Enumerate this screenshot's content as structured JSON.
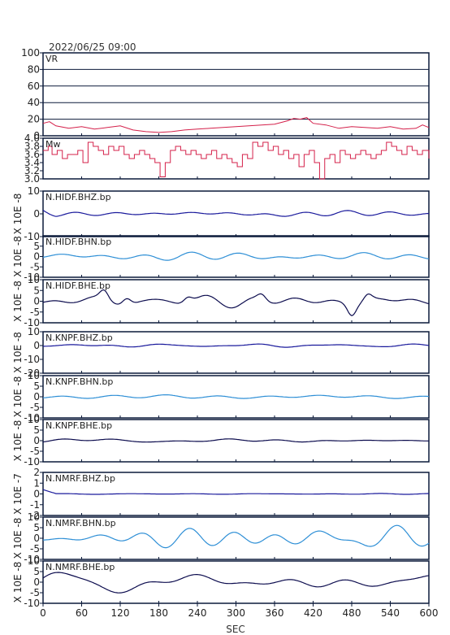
{
  "header": {
    "timestamp": "2022/06/25 09:00"
  },
  "colors": {
    "frame": "#0b1a3a",
    "vr": "#d4204a",
    "mw": "#d4204a",
    "bhz": "#1a1a9c",
    "bhn": "#2e8fd6",
    "bhe": "#0c0c4e",
    "grid": "#0b1a3a"
  },
  "chart_data": {
    "type": "line",
    "xlabel": "SEC",
    "xlim": [
      0,
      600
    ],
    "xticks": [
      0,
      60,
      120,
      180,
      240,
      300,
      360,
      420,
      480,
      540,
      600
    ],
    "panels": [
      {
        "id": "vr",
        "label": "VR",
        "color_key": "vr",
        "ylabel": "",
        "ylim": [
          0,
          100
        ],
        "yticks": [
          0,
          20,
          40,
          60,
          80,
          100
        ],
        "hgrid": true,
        "x": [
          0,
          10,
          20,
          40,
          60,
          80,
          100,
          120,
          140,
          160,
          180,
          200,
          220,
          240,
          260,
          280,
          300,
          320,
          340,
          360,
          380,
          390,
          400,
          410,
          420,
          440,
          460,
          480,
          500,
          520,
          540,
          560,
          580,
          590,
          600
        ],
        "y": [
          15,
          17,
          12,
          9,
          11,
          8,
          10,
          12,
          7,
          5,
          4,
          5,
          7,
          8,
          9,
          10,
          11,
          12,
          13,
          14,
          18,
          21,
          20,
          22,
          15,
          13,
          9,
          11,
          10,
          9,
          11,
          8,
          9,
          13,
          10
        ]
      },
      {
        "id": "mw",
        "label": "Mw",
        "color_key": "mw",
        "ylabel": "",
        "ylim": [
          3.0,
          4.0
        ],
        "yticks": [
          "3.0",
          "3.2",
          "3.4",
          "3.6",
          "3.8",
          "4.0"
        ],
        "hgrid": false,
        "x": [
          0,
          8,
          14,
          22,
          30,
          38,
          46,
          54,
          62,
          70,
          78,
          86,
          94,
          102,
          110,
          118,
          126,
          134,
          142,
          150,
          158,
          166,
          174,
          182,
          190,
          198,
          206,
          214,
          222,
          230,
          238,
          246,
          254,
          262,
          270,
          278,
          286,
          294,
          302,
          310,
          318,
          326,
          334,
          342,
          350,
          358,
          366,
          374,
          382,
          390,
          398,
          406,
          414,
          422,
          430,
          438,
          446,
          454,
          462,
          470,
          478,
          486,
          494,
          502,
          510,
          518,
          526,
          534,
          542,
          550,
          558,
          566,
          574,
          582,
          590,
          600
        ],
        "y": [
          3.7,
          3.8,
          3.6,
          3.7,
          3.5,
          3.6,
          3.6,
          3.7,
          3.4,
          3.9,
          3.8,
          3.7,
          3.6,
          3.8,
          3.7,
          3.8,
          3.6,
          3.5,
          3.6,
          3.7,
          3.6,
          3.5,
          3.4,
          3.05,
          3.4,
          3.7,
          3.8,
          3.7,
          3.6,
          3.7,
          3.6,
          3.5,
          3.6,
          3.7,
          3.5,
          3.6,
          3.5,
          3.4,
          3.3,
          3.6,
          3.5,
          3.9,
          3.8,
          3.9,
          3.7,
          3.8,
          3.6,
          3.7,
          3.5,
          3.6,
          3.3,
          3.6,
          3.7,
          3.4,
          3.0,
          3.5,
          3.6,
          3.4,
          3.7,
          3.6,
          3.5,
          3.6,
          3.7,
          3.6,
          3.5,
          3.6,
          3.7,
          3.9,
          3.8,
          3.7,
          3.6,
          3.8,
          3.7,
          3.6,
          3.7,
          3.5
        ]
      },
      {
        "id": "hidf-bhz",
        "label": "N.HIDF.BHZ.bp",
        "color_key": "bhz",
        "ylabel": "X 10E -8",
        "ylim": [
          -10,
          10
        ],
        "yticks": [
          "-10",
          "0",
          "10"
        ],
        "hgrid": false,
        "amp": 0.8,
        "start_bump": 2
      },
      {
        "id": "hidf-bhn",
        "label": "N.HIDF.BHN.bp",
        "color_key": "bhn",
        "ylabel": "X 10E -8",
        "ylim": [
          -10,
          10
        ],
        "yticks": [
          "-10",
          "-5",
          "0",
          "5"
        ],
        "hgrid": false,
        "amp": 1.2,
        "start_bump": 0
      },
      {
        "id": "hidf-bhe",
        "label": "N.HIDF.BHE.bp",
        "color_key": "bhe",
        "ylabel": "X 10E -8",
        "ylim": [
          -10,
          10
        ],
        "yticks": [
          "-10",
          "-5",
          "0",
          "5",
          "10"
        ],
        "hgrid": false,
        "amp": 1.8,
        "start_bump": 0,
        "events": [
          [
            95,
            4
          ],
          [
            130,
            3
          ],
          [
            225,
            2.5
          ],
          [
            340,
            2.5
          ],
          [
            480,
            -5
          ],
          [
            505,
            3
          ]
        ]
      },
      {
        "id": "knpf-bhz",
        "label": "N.KNPF.BHZ.bp",
        "color_key": "bhz",
        "ylabel": "X 10E -8",
        "ylim": [
          -20,
          10
        ],
        "yticks": [
          "-20",
          "-10",
          "0",
          "10"
        ],
        "hgrid": false,
        "amp": 0.6,
        "start_bump": 0
      },
      {
        "id": "knpf-bhn",
        "label": "N.KNPF.BHN.bp",
        "color_key": "bhn",
        "ylabel": "X 10E -8",
        "ylim": [
          -10,
          10
        ],
        "yticks": [
          "-10",
          "-5",
          "0",
          "5",
          "10"
        ],
        "hgrid": false,
        "amp": 0.6,
        "start_bump": 0
      },
      {
        "id": "knpf-bhe",
        "label": "N.KNPF.BHE.bp",
        "color_key": "bhe",
        "ylabel": "X 10E -8",
        "ylim": [
          -10,
          10
        ],
        "yticks": [
          "-10",
          "-5",
          "0",
          "5",
          "10"
        ],
        "hgrid": false,
        "amp": 0.7,
        "start_bump": 0
      },
      {
        "id": "nmrf-bhz",
        "label": "N.NMRF.BHZ.bp",
        "color_key": "bhz",
        "ylabel": "X 10E -7",
        "ylim": [
          -2,
          2
        ],
        "yticks": [
          "-2",
          "-1",
          "0",
          "1",
          "2"
        ],
        "hgrid": false,
        "amp": 0.05,
        "start_bump": 0.4
      },
      {
        "id": "nmrf-bhn",
        "label": "N.NMRF.BHN.bp",
        "color_key": "bhn",
        "ylabel": "X 10E -8",
        "ylim": [
          -10,
          10
        ],
        "yticks": [
          "-10",
          "-5",
          "0",
          "5",
          "10"
        ],
        "hgrid": false,
        "amp": 3.5,
        "start_bump": 0
      },
      {
        "id": "nmrf-bhe",
        "label": "N.NMRF.BHE.bp",
        "color_key": "bhe",
        "ylabel": "X 10E -8",
        "ylim": [
          -10,
          10
        ],
        "yticks": [
          "-10",
          "-5",
          "0",
          "5",
          "10"
        ],
        "hgrid": false,
        "amp": 4.0,
        "start_bump": 0
      }
    ]
  }
}
